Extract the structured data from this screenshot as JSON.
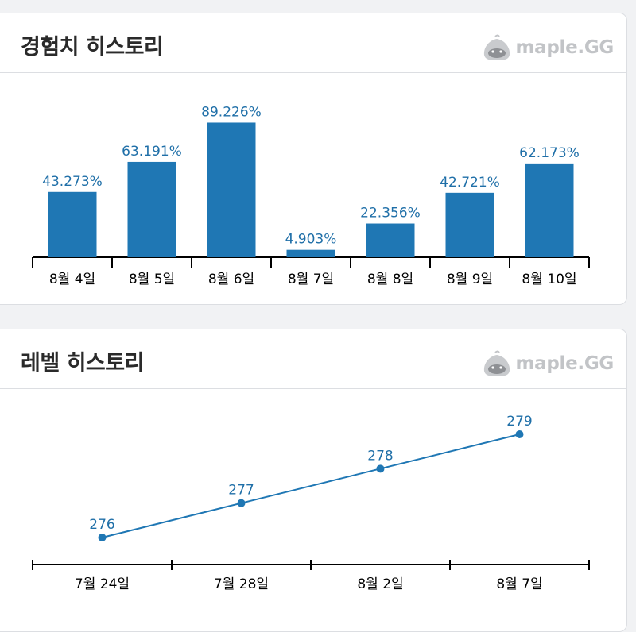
{
  "colors": {
    "bar": "#1f77b4",
    "label": "#1f6fa8",
    "axis": "#000000",
    "brand": "#c2c4c7"
  },
  "exp_card": {
    "title": "경험치 히스토리",
    "brand": "maple.GG"
  },
  "level_card": {
    "title": "레벨 히스토리",
    "brand": "maple.GG"
  },
  "chart_data": [
    {
      "type": "bar",
      "title": "경험치 히스토리",
      "categories": [
        "8월 4일",
        "8월 5일",
        "8월 6일",
        "8월 7일",
        "8월 8일",
        "8월 9일",
        "8월 10일"
      ],
      "values": [
        43.273,
        63.191,
        89.226,
        4.903,
        22.356,
        42.721,
        62.173
      ],
      "value_labels": [
        "43.273%",
        "63.191%",
        "89.226%",
        "4.903%",
        "22.356%",
        "42.721%",
        "62.173%"
      ],
      "ylim": [
        0,
        100
      ],
      "grid": false,
      "legend": "none"
    },
    {
      "type": "line",
      "title": "레벨 히스토리",
      "categories": [
        "7월 24일",
        "7월 28일",
        "8월 2일",
        "8월 7일"
      ],
      "values": [
        276,
        277,
        278,
        279
      ],
      "value_labels": [
        "276",
        "277",
        "278",
        "279"
      ],
      "ylim": [
        275.5,
        279.3
      ],
      "grid": false,
      "legend": "none"
    }
  ]
}
